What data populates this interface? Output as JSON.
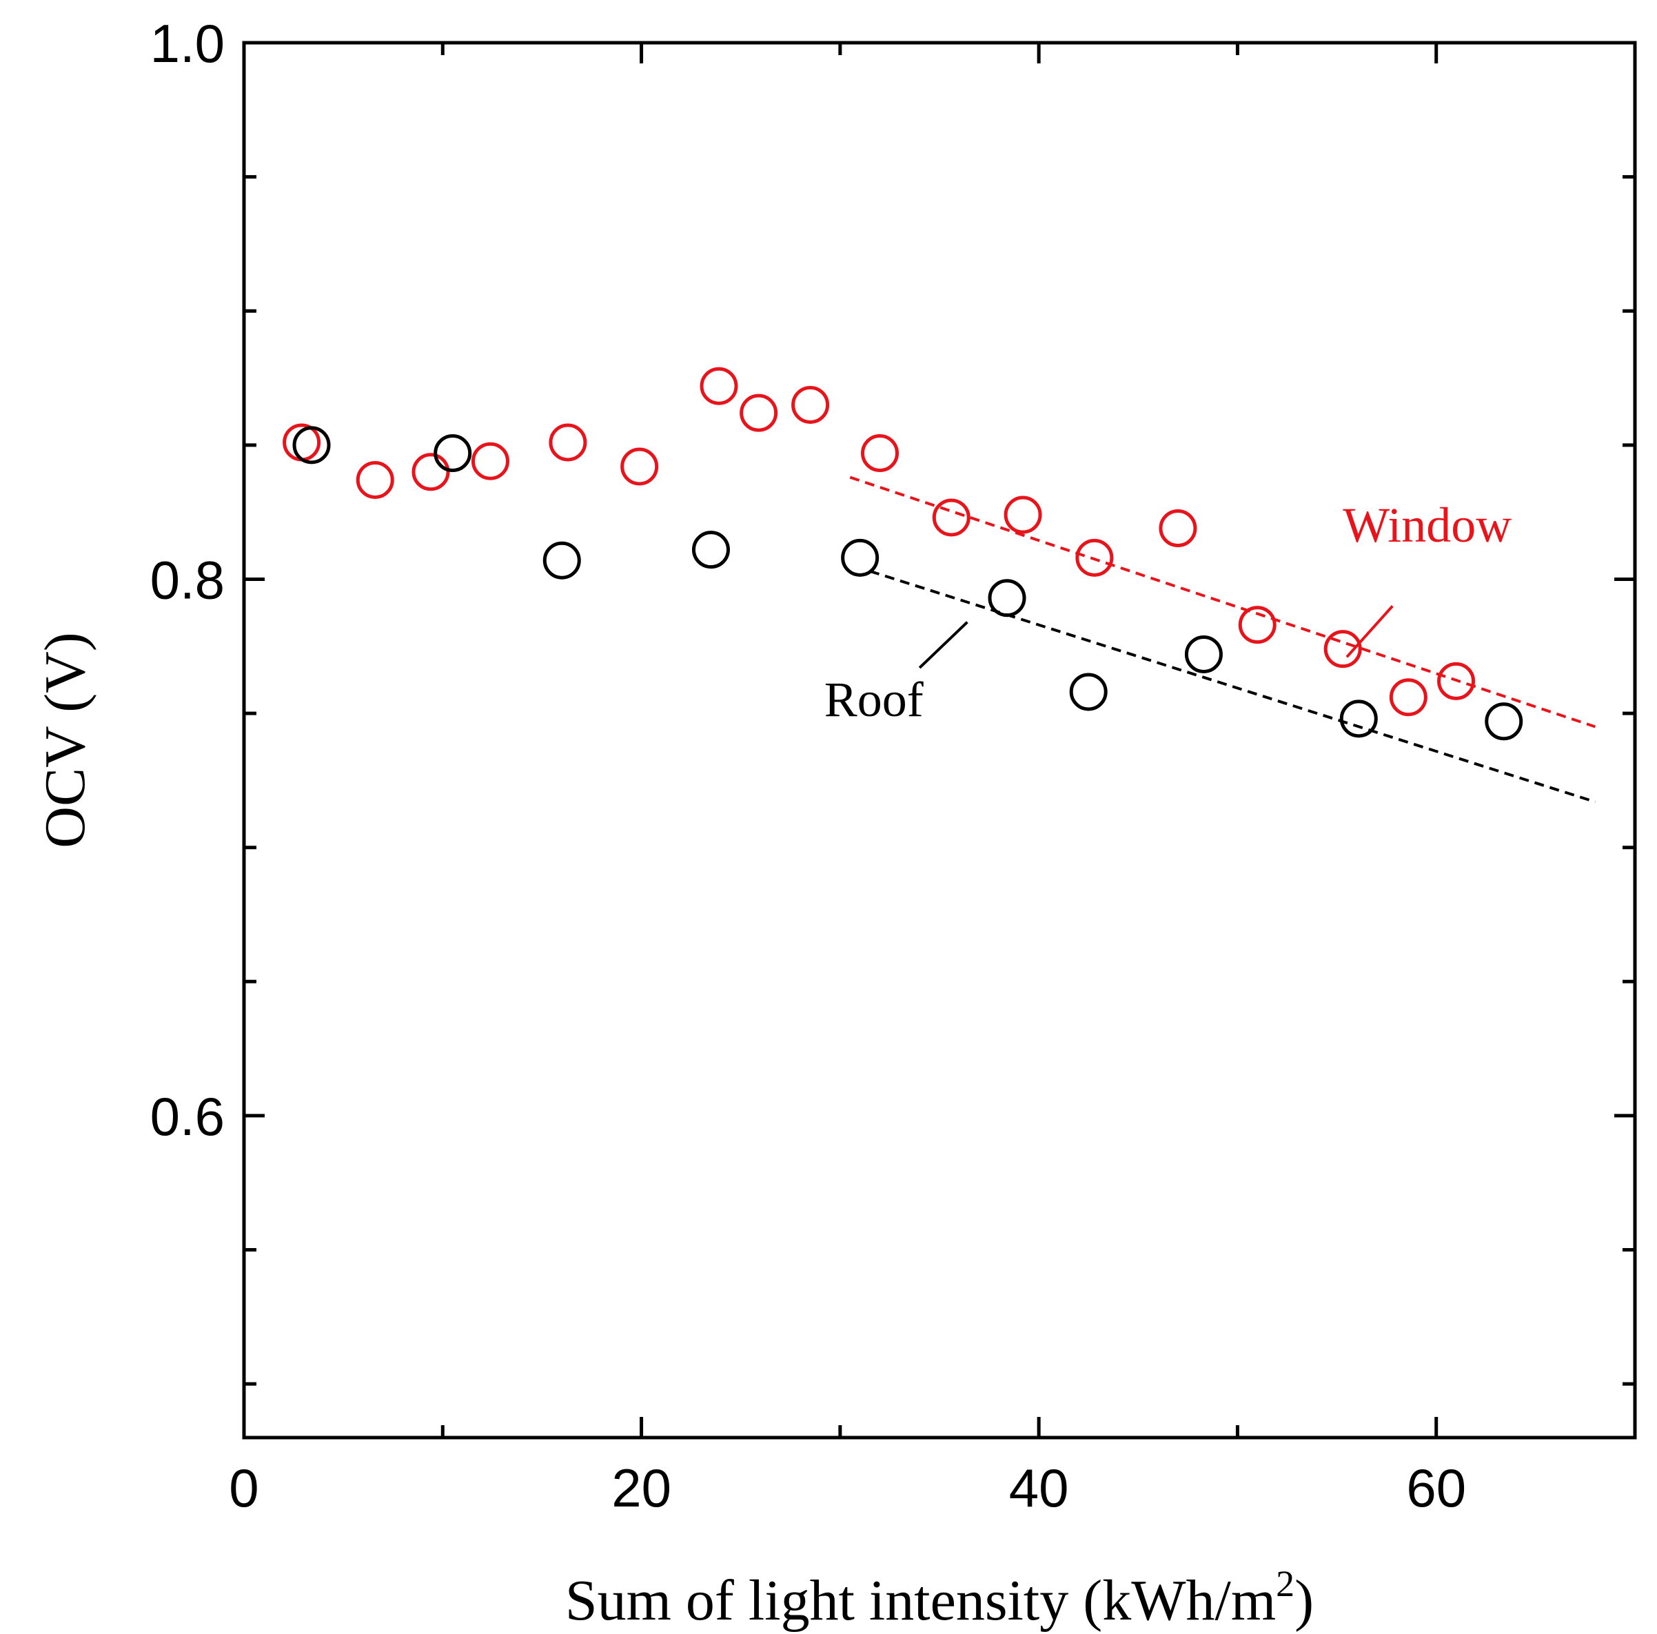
{
  "chart_data": {
    "type": "scatter",
    "title": "",
    "xlabel": "Sum of light intensity  (kWh/m",
    "xlabel_sup": "2",
    "xlabel_close": ")",
    "ylabel": "OCV  (V)",
    "xlim": [
      0,
      70
    ],
    "ylim": [
      0.48,
      1.0
    ],
    "x_ticks": [
      0,
      20,
      40,
      60
    ],
    "x_tick_labels": [
      "0",
      "20",
      "40",
      "60"
    ],
    "x_minor_ticks": [
      10,
      30,
      50
    ],
    "y_ticks": [
      0.6,
      0.8,
      1.0
    ],
    "y_tick_labels": [
      "0.6",
      "0.8",
      "1.0"
    ],
    "y_minor_ticks": [
      0.5,
      0.55,
      0.65,
      0.7,
      0.75,
      0.85,
      0.9,
      0.95
    ],
    "grid": false,
    "series": [
      {
        "name": "Window",
        "color": "#e8141b",
        "marker": "open-circle",
        "points": [
          [
            2.9,
            0.851
          ],
          [
            6.6,
            0.837
          ],
          [
            9.4,
            0.84
          ],
          [
            12.4,
            0.844
          ],
          [
            16.3,
            0.851
          ],
          [
            19.9,
            0.842
          ],
          [
            23.9,
            0.872
          ],
          [
            25.9,
            0.862
          ],
          [
            28.5,
            0.865
          ],
          [
            32.0,
            0.847
          ],
          [
            35.6,
            0.823
          ],
          [
            39.2,
            0.824
          ],
          [
            42.8,
            0.808
          ],
          [
            47.0,
            0.819
          ],
          [
            51.0,
            0.783
          ],
          [
            55.3,
            0.774
          ],
          [
            58.6,
            0.756
          ],
          [
            61.0,
            0.762
          ]
        ],
        "trend": {
          "x": [
            30.5,
            68.0
          ],
          "y": [
            0.838,
            0.745
          ]
        }
      },
      {
        "name": "Roof",
        "color": "#000000",
        "marker": "open-circle",
        "points": [
          [
            3.4,
            0.85
          ],
          [
            10.5,
            0.847
          ],
          [
            16.0,
            0.807
          ],
          [
            23.5,
            0.811
          ],
          [
            31.0,
            0.808
          ],
          [
            38.4,
            0.793
          ],
          [
            42.5,
            0.758
          ],
          [
            48.3,
            0.772
          ],
          [
            56.1,
            0.748
          ],
          [
            63.4,
            0.747
          ]
        ],
        "trend": {
          "x": [
            31.5,
            68.0
          ],
          "y": [
            0.803,
            0.717
          ]
        }
      }
    ],
    "annotations": [
      {
        "text": "Window",
        "series": "Window",
        "color": "#e8141b",
        "at": [
          55.3,
          0.814
        ],
        "leader": [
          [
            57.8,
            0.79
          ],
          [
            55.5,
            0.771
          ]
        ]
      },
      {
        "text": "Roof",
        "series": "Roof",
        "color": "#000000",
        "at": [
          29.2,
          0.749
        ],
        "leader": [
          [
            34.0,
            0.767
          ],
          [
            36.4,
            0.784
          ]
        ]
      }
    ]
  }
}
